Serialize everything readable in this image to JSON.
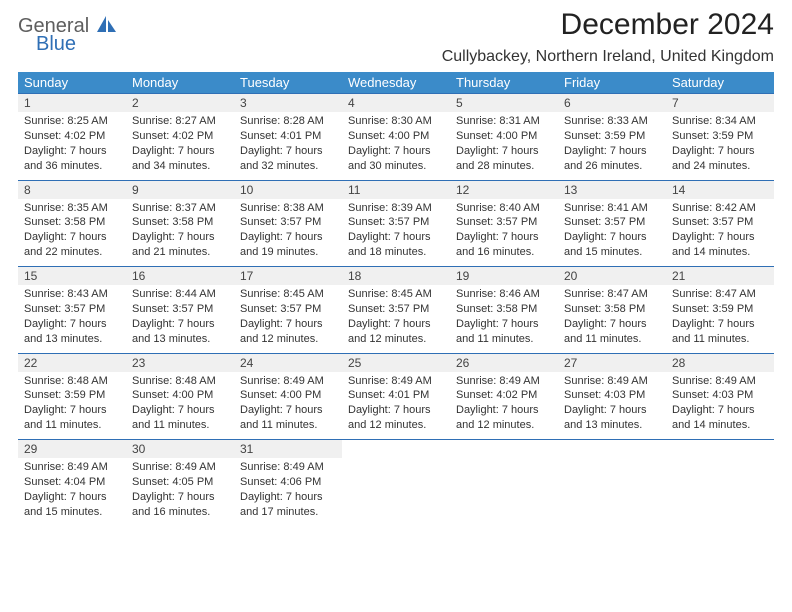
{
  "logo": {
    "line1": "General",
    "line2": "Blue"
  },
  "title": "December 2024",
  "location": "Cullybackey, Northern Ireland, United Kingdom",
  "colors": {
    "header_bg": "#3b8bc9",
    "accent_line": "#2f6fb5",
    "daynum_bg": "#f0f0f0",
    "text": "#333333"
  },
  "weekdays": [
    "Sunday",
    "Monday",
    "Tuesday",
    "Wednesday",
    "Thursday",
    "Friday",
    "Saturday"
  ],
  "weeks": [
    [
      {
        "num": "1",
        "sunrise": "8:25 AM",
        "sunset": "4:02 PM",
        "daylight": "7 hours and 36 minutes."
      },
      {
        "num": "2",
        "sunrise": "8:27 AM",
        "sunset": "4:02 PM",
        "daylight": "7 hours and 34 minutes."
      },
      {
        "num": "3",
        "sunrise": "8:28 AM",
        "sunset": "4:01 PM",
        "daylight": "7 hours and 32 minutes."
      },
      {
        "num": "4",
        "sunrise": "8:30 AM",
        "sunset": "4:00 PM",
        "daylight": "7 hours and 30 minutes."
      },
      {
        "num": "5",
        "sunrise": "8:31 AM",
        "sunset": "4:00 PM",
        "daylight": "7 hours and 28 minutes."
      },
      {
        "num": "6",
        "sunrise": "8:33 AM",
        "sunset": "3:59 PM",
        "daylight": "7 hours and 26 minutes."
      },
      {
        "num": "7",
        "sunrise": "8:34 AM",
        "sunset": "3:59 PM",
        "daylight": "7 hours and 24 minutes."
      }
    ],
    [
      {
        "num": "8",
        "sunrise": "8:35 AM",
        "sunset": "3:58 PM",
        "daylight": "7 hours and 22 minutes."
      },
      {
        "num": "9",
        "sunrise": "8:37 AM",
        "sunset": "3:58 PM",
        "daylight": "7 hours and 21 minutes."
      },
      {
        "num": "10",
        "sunrise": "8:38 AM",
        "sunset": "3:57 PM",
        "daylight": "7 hours and 19 minutes."
      },
      {
        "num": "11",
        "sunrise": "8:39 AM",
        "sunset": "3:57 PM",
        "daylight": "7 hours and 18 minutes."
      },
      {
        "num": "12",
        "sunrise": "8:40 AM",
        "sunset": "3:57 PM",
        "daylight": "7 hours and 16 minutes."
      },
      {
        "num": "13",
        "sunrise": "8:41 AM",
        "sunset": "3:57 PM",
        "daylight": "7 hours and 15 minutes."
      },
      {
        "num": "14",
        "sunrise": "8:42 AM",
        "sunset": "3:57 PM",
        "daylight": "7 hours and 14 minutes."
      }
    ],
    [
      {
        "num": "15",
        "sunrise": "8:43 AM",
        "sunset": "3:57 PM",
        "daylight": "7 hours and 13 minutes."
      },
      {
        "num": "16",
        "sunrise": "8:44 AM",
        "sunset": "3:57 PM",
        "daylight": "7 hours and 13 minutes."
      },
      {
        "num": "17",
        "sunrise": "8:45 AM",
        "sunset": "3:57 PM",
        "daylight": "7 hours and 12 minutes."
      },
      {
        "num": "18",
        "sunrise": "8:45 AM",
        "sunset": "3:57 PM",
        "daylight": "7 hours and 12 minutes."
      },
      {
        "num": "19",
        "sunrise": "8:46 AM",
        "sunset": "3:58 PM",
        "daylight": "7 hours and 11 minutes."
      },
      {
        "num": "20",
        "sunrise": "8:47 AM",
        "sunset": "3:58 PM",
        "daylight": "7 hours and 11 minutes."
      },
      {
        "num": "21",
        "sunrise": "8:47 AM",
        "sunset": "3:59 PM",
        "daylight": "7 hours and 11 minutes."
      }
    ],
    [
      {
        "num": "22",
        "sunrise": "8:48 AM",
        "sunset": "3:59 PM",
        "daylight": "7 hours and 11 minutes."
      },
      {
        "num": "23",
        "sunrise": "8:48 AM",
        "sunset": "4:00 PM",
        "daylight": "7 hours and 11 minutes."
      },
      {
        "num": "24",
        "sunrise": "8:49 AM",
        "sunset": "4:00 PM",
        "daylight": "7 hours and 11 minutes."
      },
      {
        "num": "25",
        "sunrise": "8:49 AM",
        "sunset": "4:01 PM",
        "daylight": "7 hours and 12 minutes."
      },
      {
        "num": "26",
        "sunrise": "8:49 AM",
        "sunset": "4:02 PM",
        "daylight": "7 hours and 12 minutes."
      },
      {
        "num": "27",
        "sunrise": "8:49 AM",
        "sunset": "4:03 PM",
        "daylight": "7 hours and 13 minutes."
      },
      {
        "num": "28",
        "sunrise": "8:49 AM",
        "sunset": "4:03 PM",
        "daylight": "7 hours and 14 minutes."
      }
    ],
    [
      {
        "num": "29",
        "sunrise": "8:49 AM",
        "sunset": "4:04 PM",
        "daylight": "7 hours and 15 minutes."
      },
      {
        "num": "30",
        "sunrise": "8:49 AM",
        "sunset": "4:05 PM",
        "daylight": "7 hours and 16 minutes."
      },
      {
        "num": "31",
        "sunrise": "8:49 AM",
        "sunset": "4:06 PM",
        "daylight": "7 hours and 17 minutes."
      },
      null,
      null,
      null,
      null
    ]
  ],
  "labels": {
    "sunrise": "Sunrise:",
    "sunset": "Sunset:",
    "daylight": "Daylight:"
  }
}
